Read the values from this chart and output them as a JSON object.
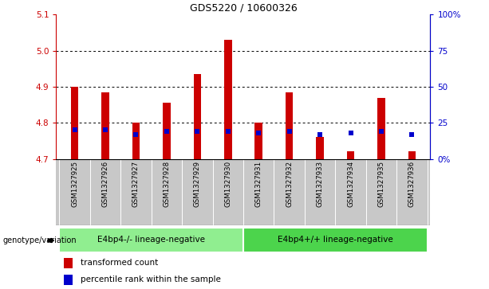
{
  "title": "GDS5220 / 10600326",
  "samples": [
    "GSM1327925",
    "GSM1327926",
    "GSM1327927",
    "GSM1327928",
    "GSM1327929",
    "GSM1327930",
    "GSM1327931",
    "GSM1327932",
    "GSM1327933",
    "GSM1327934",
    "GSM1327935",
    "GSM1327936"
  ],
  "transformed_count": [
    4.9,
    4.885,
    4.8,
    4.855,
    4.935,
    5.03,
    4.8,
    4.884,
    4.762,
    4.722,
    4.868,
    4.722
  ],
  "percentile_rank": [
    20,
    20,
    17,
    19,
    19,
    19,
    18,
    19,
    17,
    18,
    19,
    17
  ],
  "ylim_left": [
    4.7,
    5.1
  ],
  "ylim_right": [
    0,
    100
  ],
  "yticks_left": [
    4.7,
    4.8,
    4.9,
    5.0,
    5.1
  ],
  "yticks_right": [
    0,
    25,
    50,
    75,
    100
  ],
  "ytick_labels_right": [
    "0%",
    "25",
    "50",
    "75",
    "100%"
  ],
  "grid_lines": [
    4.8,
    4.9,
    5.0
  ],
  "groups": [
    {
      "label": "E4bp4-/- lineage-negative",
      "start": 0,
      "end": 6,
      "color": "#90EE90"
    },
    {
      "label": "E4bp4+/+ lineage-negative",
      "start": 6,
      "end": 12,
      "color": "#4CD44C"
    }
  ],
  "bar_color": "#CC0000",
  "dot_color": "#0000CC",
  "bar_width": 0.25,
  "dot_size": 22,
  "left_color": "#CC0000",
  "right_color": "#0000CC",
  "bg_gray": "#C8C8C8",
  "legend_items": [
    {
      "color": "#CC0000",
      "label": "transformed count"
    },
    {
      "color": "#0000CC",
      "label": "percentile rank within the sample"
    }
  ]
}
